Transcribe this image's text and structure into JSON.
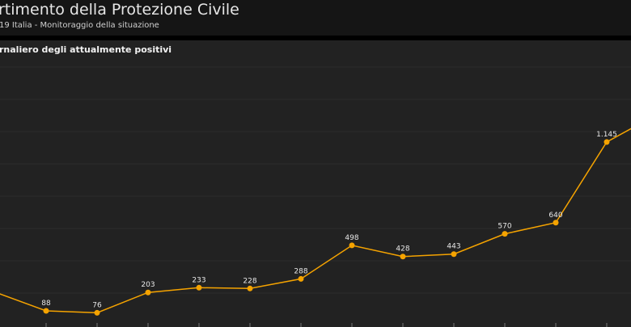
{
  "header": {
    "title": "rtimento della Protezione Civile",
    "subtitle": "19 Italia - Monitoraggio della situazione"
  },
  "chart_data": {
    "type": "line",
    "title": "rnaliero degli attualmente positivi",
    "values": [
      205,
      88,
      76,
      203,
      233,
      228,
      288,
      498,
      428,
      443,
      570,
      640,
      1145,
      1320
    ],
    "value_labels": [
      null,
      "88",
      "76",
      "203",
      "233",
      "228",
      "288",
      "498",
      "428",
      "443",
      "570",
      "640",
      "1.145",
      null
    ],
    "color": "#f5a300",
    "ylim": [
      0,
      1680
    ]
  }
}
